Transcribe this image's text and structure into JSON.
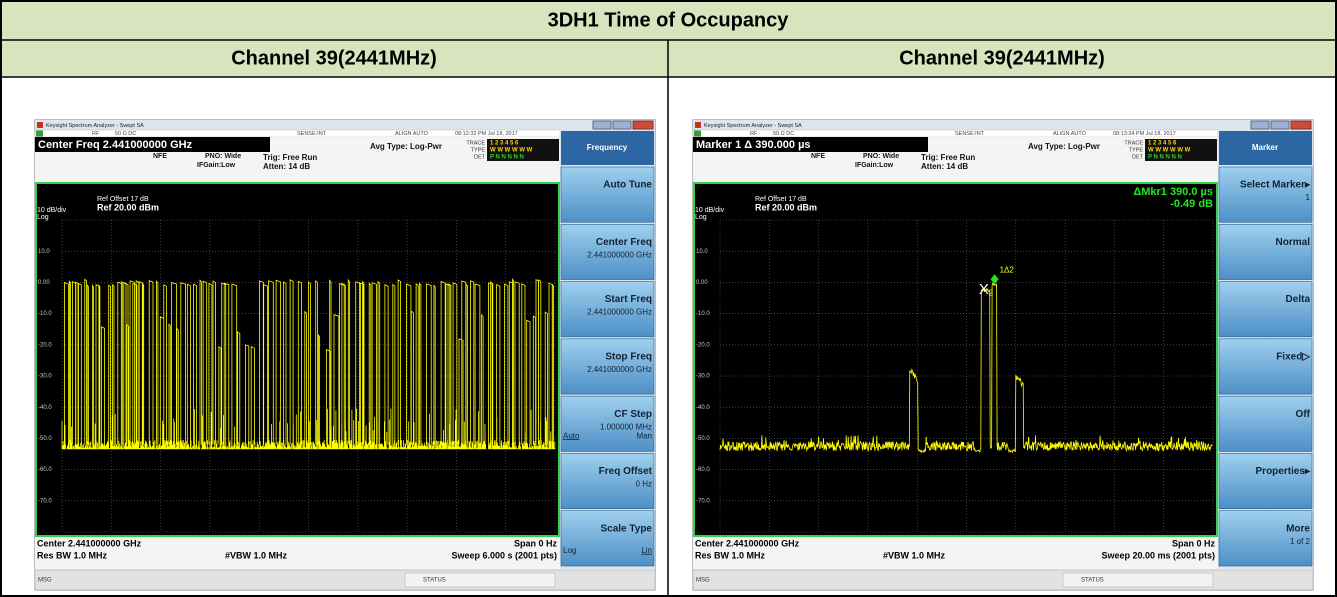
{
  "header": {
    "title": "3DH1 Time of Occupancy"
  },
  "columns": [
    {
      "heading": "Channel 39(2441MHz)",
      "screen": {
        "window_title": "Keysight Spectrum Analyzer - Swept SA",
        "status_line": [
          "RF",
          "50 Ω  DC",
          "SENSE:INT",
          "ALIGN AUTO",
          "08:12:32 PM Jul 18, 2017"
        ],
        "active_function": "Center Freq 2.441000000 GHz",
        "settings": [
          "NFE",
          "PNO: Wide",
          "IFGain:Low",
          "Trig: Free Run",
          "Atten: 14 dB",
          "Avg Type: Log-Pwr"
        ],
        "trace_info": [
          "TRACE",
          "TYPE",
          "DET"
        ],
        "trace_info_values": [
          "1 2 3 4 5 6",
          "W W W W W W",
          "P N N N N N"
        ],
        "ref_offset": "Ref Offset 17 dB",
        "scale": "10 dB/div",
        "scale_type": "Log",
        "ref_level": "Ref 20.00 dBm",
        "y_labels": [
          "10.0",
          "0.00",
          "-10.0",
          "-20.0",
          "-30.0",
          "-40.0",
          "-50.0",
          "-60.0",
          "-70.0"
        ],
        "bottom": {
          "center": "Center 2.441000000 GHz",
          "span": "Span 0 Hz",
          "res_bw": "Res BW 1.0 MHz",
          "vbw": "#VBW 1.0 MHz",
          "sweep": "Sweep  6.000 s (2001 pts)"
        },
        "msg": "MSG",
        "status": "STATUS",
        "menu": {
          "title": "Frequency",
          "keys": [
            {
              "label": "Auto Tune"
            },
            {
              "label": "Center Freq",
              "detail": "2.441000000 GHz"
            },
            {
              "label": "Start Freq",
              "detail": "2.441000000 GHz"
            },
            {
              "label": "Stop Freq",
              "detail": "2.441000000 GHz"
            },
            {
              "label": "CF Step",
              "detail": "1.000000 MHz",
              "left": "Auto",
              "right": "Man"
            },
            {
              "label": "Freq Offset",
              "detail": "0 Hz"
            },
            {
              "label": "Scale Type",
              "left": "Log",
              "right": "Lin"
            }
          ]
        }
      }
    },
    {
      "heading": "Channel 39(2441MHz)",
      "screen": {
        "window_title": "Keysight Spectrum Analyzer - Swept SA",
        "status_line": [
          "RF",
          "50 Ω  DC",
          "SENSE:INT",
          "ALIGN AUTO",
          "08:13:34 PM Jul 18, 2017"
        ],
        "active_function": "Marker 1 Δ 390.000 µs",
        "settings": [
          "NFE",
          "PNO: Wide",
          "IFGain:Low",
          "Trig: Free Run",
          "Atten: 14 dB",
          "Avg Type: Log-Pwr"
        ],
        "trace_info": [
          "TRACE",
          "TYPE",
          "DET"
        ],
        "trace_info_values": [
          "1 2 3 4 5 6",
          "W W W W W W",
          "P N N N N N"
        ],
        "ref_offset": "Ref Offset 17 dB",
        "scale": "10 dB/div",
        "scale_type": "Log",
        "ref_level": "Ref 20.00 dBm",
        "y_labels": [
          "10.0",
          "0.00",
          "-10.0",
          "-20.0",
          "-30.0",
          "-40.0",
          "-50.0",
          "-60.0",
          "-70.0"
        ],
        "marker_readout": [
          "ΔMkr1 390.0 µs",
          "-0.49 dB"
        ],
        "marker_labels": [
          "1Δ2",
          "X",
          "2"
        ],
        "bottom": {
          "center": "Center 2.441000000 GHz",
          "span": "Span 0 Hz",
          "res_bw": "Res BW 1.0 MHz",
          "vbw": "#VBW 1.0 MHz",
          "sweep": "Sweep  20.00 ms (2001 pts)"
        },
        "msg": "MSG",
        "status": "STATUS",
        "menu": {
          "title": "Marker",
          "keys": [
            {
              "label": "Select Marker▸",
              "detail": "1"
            },
            {
              "label": "Normal"
            },
            {
              "label": "Delta"
            },
            {
              "label": "Fixed▷"
            },
            {
              "label": "Off"
            },
            {
              "label": "Properties▸"
            },
            {
              "label": "More",
              "detail": "1 of 2"
            }
          ]
        }
      }
    }
  ]
}
